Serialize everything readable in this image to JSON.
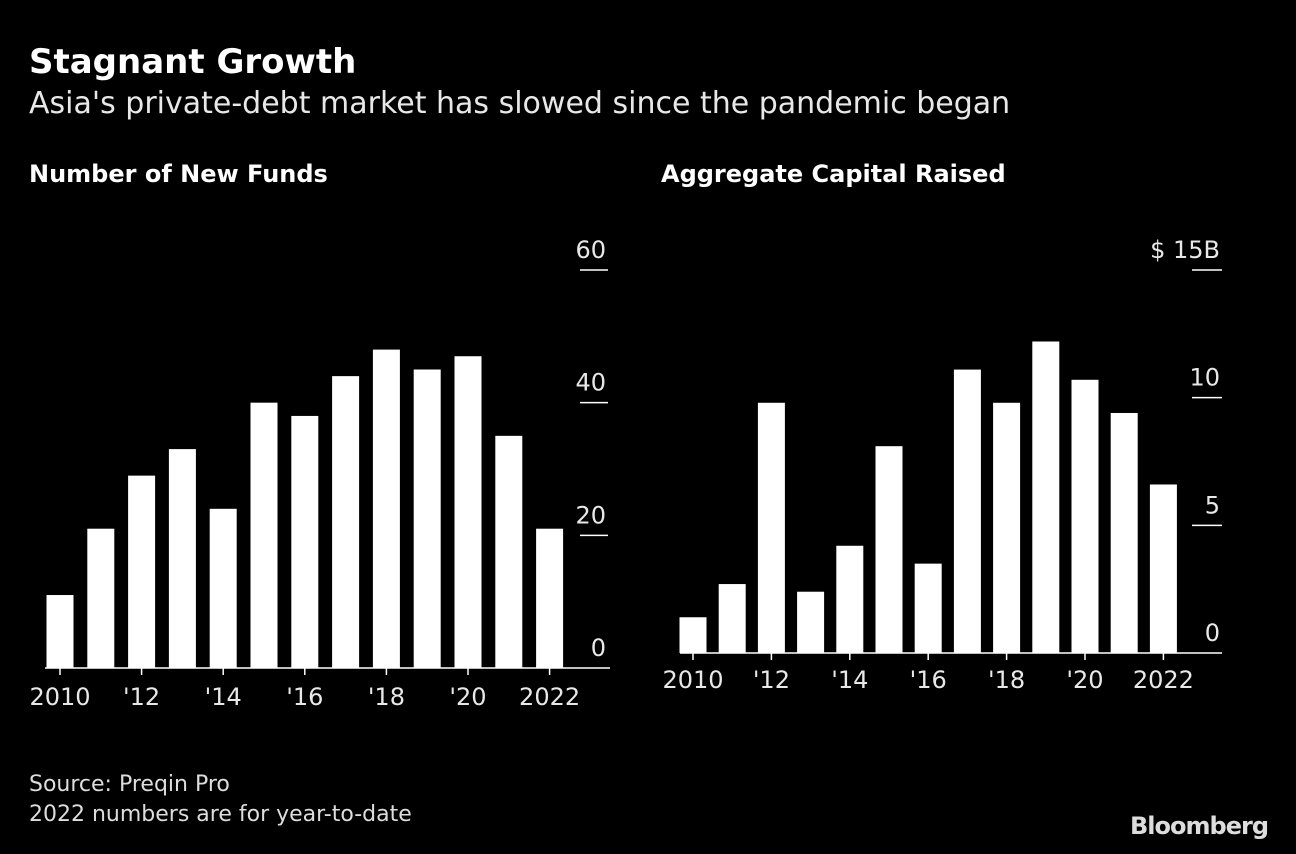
{
  "title": "Stagnant Growth",
  "subtitle": "Asia's private-debt market has slowed since the pandemic began",
  "source": "Source: Preqin Pro",
  "note": "2022 numbers are for year-to-date",
  "logo": "Bloomberg",
  "chart_data": [
    {
      "type": "bar",
      "title": "Number of New Funds",
      "categories": [
        "2010",
        "2011",
        "2012",
        "2013",
        "2014",
        "2015",
        "2016",
        "2017",
        "2018",
        "2019",
        "2020",
        "2021",
        "2022"
      ],
      "x_tick_labels": [
        "2010",
        "'12",
        "'14",
        "'16",
        "'18",
        "'20",
        "2022"
      ],
      "values": [
        11,
        21,
        29,
        33,
        24,
        40,
        38,
        44,
        48,
        45,
        47,
        35,
        21
      ],
      "y_ticks": [
        0,
        20,
        40,
        60
      ],
      "y_tick_labels": [
        "0",
        "20",
        "40",
        "60"
      ],
      "ylim": [
        0,
        60
      ],
      "color": "#ffffff"
    },
    {
      "type": "bar",
      "title": "Aggregate Capital Raised",
      "categories": [
        "2010",
        "2011",
        "2012",
        "2013",
        "2014",
        "2015",
        "2016",
        "2017",
        "2018",
        "2019",
        "2020",
        "2021",
        "2022"
      ],
      "x_tick_labels": [
        "2010",
        "'12",
        "'14",
        "'16",
        "'18",
        "'20",
        "2022"
      ],
      "values": [
        1.4,
        2.7,
        9.8,
        2.4,
        4.2,
        8.1,
        3.5,
        11.1,
        9.8,
        12.2,
        10.7,
        9.4,
        6.6
      ],
      "y_ticks": [
        0,
        5,
        10,
        15
      ],
      "y_tick_labels": [
        "0",
        "5",
        "10",
        "$ 15B"
      ],
      "ylim": [
        0,
        15
      ],
      "color": "#ffffff"
    }
  ]
}
